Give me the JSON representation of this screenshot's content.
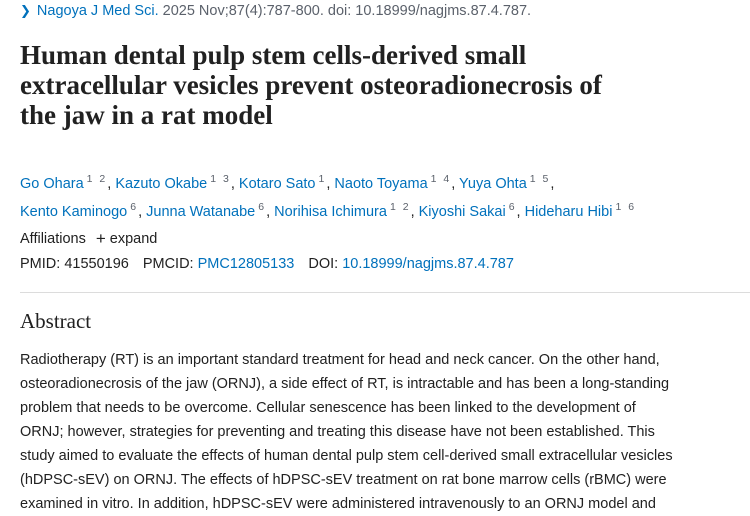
{
  "citation": {
    "journal": "Nagoya J Med Sci.",
    "details": "2025 Nov;87(4):787-800. doi: 10.18999/nagjms.87.4.787."
  },
  "title_lines": [
    "Human dental pulp stem cells-derived small",
    "extracellular vesicles prevent osteoradionecrosis of",
    "the jaw in a rat model"
  ],
  "authors": [
    {
      "name": "Go Ohara",
      "aff": "1 2"
    },
    {
      "name": "Kazuto Okabe",
      "aff": "1 3"
    },
    {
      "name": "Kotaro Sato",
      "aff": "1"
    },
    {
      "name": "Naoto Toyama",
      "aff": "1 4"
    },
    {
      "name": "Yuya Ohta",
      "aff": "1 5"
    },
    {
      "name": "Kento Kaminogo",
      "aff": "6"
    },
    {
      "name": "Junna Watanabe",
      "aff": "6"
    },
    {
      "name": "Norihisa Ichimura",
      "aff": "1 2"
    },
    {
      "name": "Kiyoshi Sakai",
      "aff": "6"
    },
    {
      "name": "Hideharu Hibi",
      "aff": "1 6"
    }
  ],
  "affiliations": {
    "label": "Affiliations",
    "expand_label": "expand"
  },
  "ids": {
    "pmid_label": "PMID:",
    "pmid": "41550196",
    "pmcid_label": "PMCID:",
    "pmcid": "PMC12805133",
    "doi_label": "DOI:",
    "doi": "10.18999/nagjms.87.4.787"
  },
  "abstract": {
    "heading": "Abstract",
    "lines": [
      "Radiotherapy (RT) is an important standard treatment for head and neck cancer. On the other hand,",
      "osteoradionecrosis of the jaw (ORNJ), a side effect of RT, is intractable and has been a long-standing",
      "problem that needs to be overcome. Cellular senescence has been linked to the development of",
      "ORNJ; however, strategies for preventing and treating this disease have not been established. This",
      "study aimed to evaluate the effects of human dental pulp stem cell-derived small extracellular vesicles",
      "(hDPSC-sEV) on ORNJ. The effects of hDPSC-sEV treatment on rat bone marrow cells (rBMC) were",
      "examined in vitro. In addition, hDPSC-sEV were administered intravenously to an ORNJ model and"
    ]
  }
}
